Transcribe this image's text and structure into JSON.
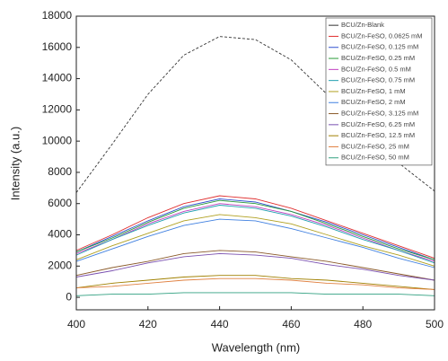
{
  "chart_data": {
    "type": "line",
    "xlabel": "Wavelength (nm)",
    "ylabel": "Intensity (a.u.)",
    "x": [
      400,
      410,
      420,
      430,
      440,
      450,
      460,
      470,
      480,
      490,
      500
    ],
    "xlim": [
      400,
      500
    ],
    "xticks": [
      400,
      420,
      440,
      460,
      480,
      500
    ],
    "ylim": [
      -800,
      18000
    ],
    "yticks": [
      0,
      2000,
      4000,
      6000,
      8000,
      10000,
      12000,
      14000,
      16000,
      18000
    ],
    "legend": "upper right",
    "series": [
      {
        "name": "BCU/Zn-Blank",
        "color": "#333333",
        "values": [
          6700,
          9800,
          13000,
          15500,
          16700,
          16500,
          15200,
          13000,
          10500,
          8600,
          6800
        ]
      },
      {
        "name": "BCU/Zn-FeSO, 0.0625 mM",
        "color": "#e03030",
        "values": [
          3000,
          4000,
          5100,
          6000,
          6500,
          6300,
          5700,
          4900,
          4100,
          3300,
          2500
        ]
      },
      {
        "name": "BCU/Zn-FeSO, 0.125 mM",
        "color": "#3050d0",
        "values": [
          2900,
          3900,
          4900,
          5800,
          6300,
          6100,
          5500,
          4800,
          4000,
          3200,
          2400
        ]
      },
      {
        "name": "BCU/Zn-FeSO, 0.25 mM",
        "color": "#2a9a3a",
        "values": [
          2900,
          3800,
          4800,
          5700,
          6200,
          6000,
          5500,
          4700,
          3900,
          3100,
          2400
        ]
      },
      {
        "name": "BCU/Zn-FeSO, 0.5 mM",
        "color": "#c040c0",
        "values": [
          2800,
          3700,
          4700,
          5500,
          6000,
          5800,
          5300,
          4600,
          3800,
          3000,
          2300
        ]
      },
      {
        "name": "BCU/Zn-FeSO, 0.75 mM",
        "color": "#20a0b0",
        "values": [
          2700,
          3700,
          4600,
          5400,
          5900,
          5700,
          5200,
          4500,
          3700,
          3000,
          2200
        ]
      },
      {
        "name": "BCU/Zn-FeSO, 1 mM",
        "color": "#b0a020",
        "values": [
          2400,
          3300,
          4100,
          4900,
          5300,
          5100,
          4700,
          4000,
          3300,
          2700,
          2000
        ]
      },
      {
        "name": "BCU/Zn-FeSO, 2 mM",
        "color": "#4080e0",
        "values": [
          2300,
          3100,
          3900,
          4600,
          5000,
          4900,
          4400,
          3800,
          3200,
          2500,
          1900
        ]
      },
      {
        "name": "BCU/Zn-FeSO, 3.125 mM",
        "color": "#8a5a2a",
        "values": [
          1400,
          1900,
          2300,
          2800,
          3000,
          2900,
          2600,
          2300,
          1900,
          1500,
          1100
        ]
      },
      {
        "name": "BCU/Zn-FeSO, 6.25 mM",
        "color": "#7a50b0",
        "values": [
          1300,
          1700,
          2200,
          2600,
          2800,
          2700,
          2500,
          2100,
          1800,
          1400,
          1100
        ]
      },
      {
        "name": "BCU/Zn-FeSO, 12.5 mM",
        "color": "#a08000",
        "values": [
          600,
          900,
          1100,
          1300,
          1400,
          1400,
          1200,
          1100,
          900,
          700,
          500
        ]
      },
      {
        "name": "BCU/Zn-FeSO, 25 mM",
        "color": "#e08040",
        "values": [
          600,
          700,
          900,
          1100,
          1200,
          1200,
          1100,
          900,
          800,
          600,
          500
        ]
      },
      {
        "name": "BCU/Zn-FeSO, 50 mM",
        "color": "#30a080",
        "values": [
          100,
          200,
          200,
          300,
          300,
          300,
          300,
          200,
          200,
          200,
          100
        ]
      }
    ]
  }
}
